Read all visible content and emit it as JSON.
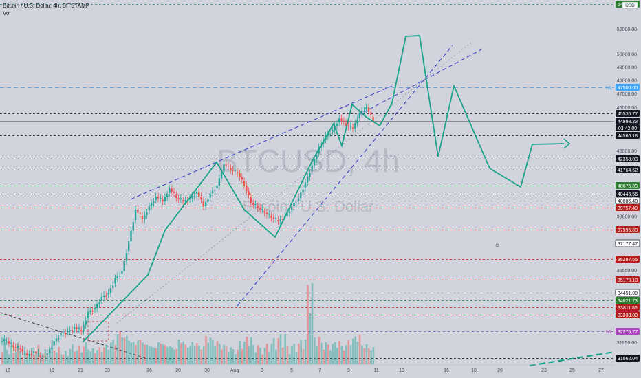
{
  "header": {
    "symbol_line": "Bitcoin / U.S. Dollar, 4h, BITSTAMP",
    "volume_label": "Vol"
  },
  "watermark": {
    "symbol": "BTCUSD, 4h",
    "name": "Bitcoin / U.S. Dollar"
  },
  "currency_badge": "USD",
  "colors": {
    "background": "#d1d4dc",
    "up": "#26a69a",
    "down": "#ef5350",
    "projection": "#1aa38a",
    "channel": "#3f45c8",
    "green_level": "#1e8e3e",
    "red_level": "#c62828"
  },
  "chart_data": {
    "type": "candlestick",
    "y_axis": {
      "scale": "log",
      "ticks": [
        "52000.00",
        "50000.00",
        "49000.00",
        "48000.00",
        "47000.00",
        "46000.00",
        "45000.00",
        "43000.00",
        "38800.00",
        "35650.00",
        "34500.00",
        "31850.00"
      ]
    },
    "x_axis": {
      "ticks": [
        "16",
        "19",
        "21",
        "23",
        "26",
        "28",
        "30",
        "Aug",
        "3",
        "5",
        "7",
        "9",
        "11",
        "13",
        "16",
        "18",
        "20",
        "23",
        "25",
        "27"
      ]
    },
    "price_tags": [
      {
        "label": "54000.00",
        "style": "green"
      },
      {
        "label": "47500.00",
        "style": "blue",
        "note": "NL"
      },
      {
        "label": "45536.77",
        "style": "dark"
      },
      {
        "label": "44998.23",
        "style": "dark"
      },
      {
        "label": "03:42:00",
        "style": "dark"
      },
      {
        "label": "44566.18",
        "style": "dark"
      },
      {
        "label": "42358.03",
        "style": "dark"
      },
      {
        "label": "41764.62",
        "style": "dark"
      },
      {
        "label": "40676.89",
        "style": "green"
      },
      {
        "label": "40446.56",
        "style": "dark"
      },
      {
        "label": "40085.48",
        "style": "outline"
      },
      {
        "label": "39757.49",
        "style": "red"
      },
      {
        "label": "37995.80",
        "style": "red"
      },
      {
        "label": "37177.47",
        "style": "outline"
      },
      {
        "label": "36297.65",
        "style": "red"
      },
      {
        "label": "35179.10",
        "style": "red"
      },
      {
        "label": "34451.09",
        "style": "outline"
      },
      {
        "label": "34021.73",
        "style": "green"
      },
      {
        "label": "33811.86",
        "style": "red"
      },
      {
        "label": "33333.00",
        "style": "red"
      },
      {
        "label": "32275.77",
        "style": "purple",
        "note": "NL"
      },
      {
        "label": "31062.04",
        "style": "dark"
      }
    ],
    "drawn_projection": {
      "description": "Hand-drawn zig-zag price path: rise to ~51,400, drop, bounce to ~47,500, decline, base near 40,500, rebound toward ~43,000",
      "key_prices": [
        51400,
        42600,
        47500,
        41500,
        40500,
        43100
      ]
    },
    "series": [
      {
        "kind": "ohlc",
        "period": "16 Jul – 10 Aug (approx.)",
        "close_path": [
          31900,
          31600,
          31500,
          31200,
          31400,
          31100,
          31300,
          31900,
          32300,
          32400,
          32600,
          32400,
          33400,
          33600,
          34200,
          34400,
          35200,
          35600,
          37300,
          39200,
          38600,
          39400,
          40000,
          39700,
          40500,
          39900,
          39700,
          39900,
          40300,
          39400,
          40200,
          40700,
          42100,
          41700,
          41500,
          40700,
          39600,
          39300,
          39000,
          38700,
          38500,
          38800,
          39400,
          39900,
          40900,
          42000,
          43200,
          44000,
          44400,
          45200,
          44700,
          44500,
          45600,
          46000,
          45000
        ]
      }
    ]
  }
}
